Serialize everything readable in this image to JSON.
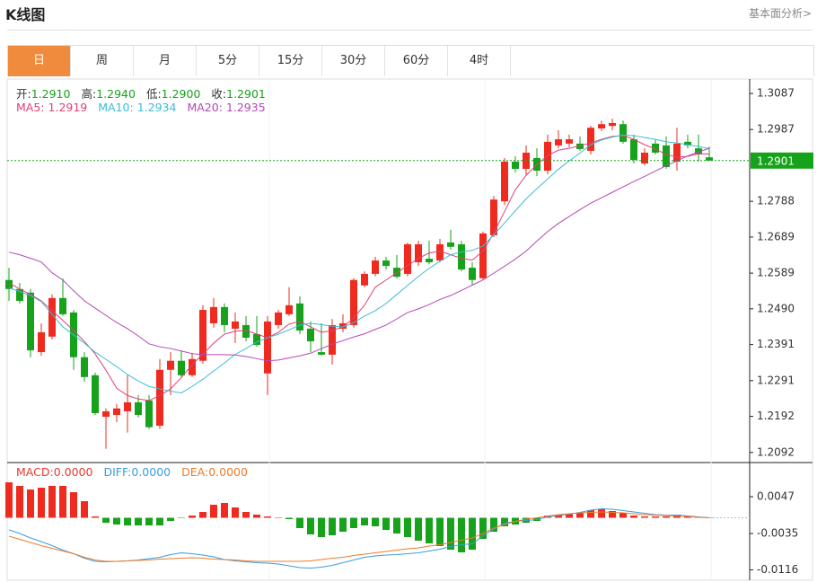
{
  "header": {
    "title": "K线图",
    "link": "基本面分析>"
  },
  "tabs": [
    "日",
    "周",
    "月",
    "5分",
    "15分",
    "30分",
    "60分",
    "4时"
  ],
  "chart_data": [
    {
      "type": "candlestick",
      "ohlc_info": [
        {
          "name": "开:",
          "value": "1.2910"
        },
        {
          "name": "高:",
          "value": "1.2940"
        },
        {
          "name": "低:",
          "value": "1.2900"
        },
        {
          "name": "收:",
          "value": "1.2901"
        }
      ],
      "up_color": "#ee2b1e",
      "down_color": "#16a21a",
      "categories": [
        null,
        null,
        null,
        null,
        null,
        null,
        null,
        null,
        null,
        null,
        null,
        null,
        null,
        null,
        null,
        null,
        null,
        null,
        null,
        null,
        null,
        null,
        null,
        null,
        null,
        null,
        null,
        null,
        null,
        null,
        null,
        null,
        null,
        null,
        null,
        null,
        null,
        null,
        null,
        null,
        null,
        null,
        null,
        null,
        null,
        null,
        null,
        null,
        null,
        null,
        null,
        null,
        null,
        null,
        null,
        null,
        null,
        null,
        null,
        null,
        null,
        null,
        null,
        null,
        null,
        null
      ],
      "open": [
        1.257,
        1.2545,
        1.2535,
        1.237,
        1.2413,
        1.252,
        1.248,
        1.2356,
        1.2306,
        1.2191,
        1.2196,
        1.2206,
        1.2231,
        1.2236,
        1.2166,
        1.2321,
        1.2346,
        1.2306,
        1.2346,
        1.245,
        1.2495,
        1.2435,
        1.2445,
        1.242,
        1.2311,
        1.2445,
        1.2475,
        1.2505,
        1.2435,
        1.237,
        1.2363,
        1.2435,
        1.2445,
        1.2555,
        1.2587,
        1.2624,
        1.2604,
        1.2587,
        1.2619,
        1.2629,
        1.2624,
        1.2674,
        1.2669,
        1.2604,
        1.2575,
        1.2694,
        1.2788,
        1.2898,
        1.2878,
        1.2908,
        1.2873,
        1.2943,
        1.2948,
        1.2948,
        1.2928,
        1.299,
        1.2997,
        1.3002,
        1.296,
        1.2893,
        1.2948,
        1.2943,
        1.2898,
        1.2953,
        1.2935,
        1.291
      ],
      "high": [
        1.2604,
        1.2562,
        1.2545,
        1.245,
        1.253,
        1.2574,
        1.2487,
        1.237,
        1.2313,
        1.2214,
        1.2226,
        1.2306,
        1.2251,
        1.2251,
        1.2351,
        1.237,
        1.2375,
        1.2368,
        1.25,
        1.252,
        1.2505,
        1.248,
        1.247,
        1.247,
        1.247,
        1.2487,
        1.255,
        1.2525,
        1.2455,
        1.245,
        1.2462,
        1.2475,
        1.2575,
        1.2594,
        1.2634,
        1.2634,
        1.2639,
        1.2674,
        1.2679,
        1.2679,
        1.2684,
        1.2709,
        1.2679,
        1.2619,
        1.2704,
        1.2803,
        1.2908,
        1.2913,
        1.2943,
        1.2935,
        1.2973,
        1.2985,
        1.2973,
        1.2968,
        1.2997,
        1.3012,
        1.3017,
        1.3012,
        1.2973,
        1.2935,
        1.296,
        1.2968,
        1.2992,
        1.2973,
        1.2973,
        1.294
      ],
      "low": [
        1.2512,
        1.2505,
        1.2356,
        1.236,
        1.2405,
        1.247,
        1.2321,
        1.2288,
        1.2196,
        1.2102,
        1.2176,
        1.2147,
        1.2189,
        1.2157,
        1.2157,
        1.2251,
        1.2301,
        1.2301,
        1.2338,
        1.2438,
        1.2425,
        1.2395,
        1.24,
        1.2385,
        1.2251,
        1.2435,
        1.247,
        1.242,
        1.237,
        1.236,
        1.2336,
        1.2425,
        1.2438,
        1.255,
        1.258,
        1.2599,
        1.2574,
        1.258,
        1.2609,
        1.2614,
        1.2619,
        1.2654,
        1.2594,
        1.2555,
        1.257,
        1.2689,
        1.2778,
        1.2868,
        1.2861,
        1.2858,
        1.2863,
        1.2935,
        1.2938,
        1.2928,
        1.2918,
        1.2983,
        1.2985,
        1.2948,
        1.2893,
        1.2888,
        1.2918,
        1.2878,
        1.2873,
        1.2935,
        1.2898,
        1.29
      ],
      "close": [
        1.2545,
        1.2512,
        1.2375,
        1.2425,
        1.252,
        1.2475,
        1.2356,
        1.2301,
        1.2201,
        1.2206,
        1.2214,
        1.2231,
        1.2196,
        1.2162,
        1.2321,
        1.2346,
        1.2306,
        1.2351,
        1.2487,
        1.2495,
        1.2445,
        1.2455,
        1.241,
        1.239,
        1.2455,
        1.248,
        1.25,
        1.243,
        1.24,
        1.2363,
        1.2445,
        1.245,
        1.257,
        1.2587,
        1.2624,
        1.2609,
        1.2579,
        1.2669,
        1.2669,
        1.2619,
        1.2669,
        1.2662,
        1.2599,
        1.257,
        1.2699,
        1.2793,
        1.2898,
        1.2878,
        1.2923,
        1.2873,
        1.2953,
        1.296,
        1.296,
        1.2933,
        1.2992,
        1.3002,
        1.3005,
        1.2953,
        1.2903,
        1.2923,
        1.2923,
        1.2883,
        1.2948,
        1.2943,
        1.2918,
        1.2901
      ],
      "ma": [
        {
          "name": "MA5:",
          "value_label": "1.2919",
          "color": "#e0407a",
          "values": [
            1.2562,
            1.2545,
            1.253,
            1.2512,
            1.2485,
            1.2458,
            1.243,
            1.24,
            1.2365,
            1.232,
            1.227,
            1.225,
            1.224,
            1.2236,
            1.225,
            1.2268,
            1.23,
            1.2335,
            1.2365,
            1.2395,
            1.242,
            1.2428,
            1.243,
            1.242,
            1.241,
            1.2425,
            1.2448,
            1.2455,
            1.244,
            1.2425,
            1.243,
            1.244,
            1.2465,
            1.25,
            1.255,
            1.257,
            1.259,
            1.261,
            1.263,
            1.2645,
            1.265,
            1.264,
            1.263,
            1.2625,
            1.265,
            1.27,
            1.276,
            1.282,
            1.286,
            1.289,
            1.2915,
            1.293,
            1.2935,
            1.2942,
            1.295,
            1.296,
            1.2968,
            1.297,
            1.296,
            1.2945,
            1.2933,
            1.2918,
            1.291,
            1.2913,
            1.292,
            1.2919
          ]
        },
        {
          "name": "MA10:",
          "value_label": "1.2934",
          "color": "#3cbcd8",
          "values": [
            1.2548,
            1.2538,
            1.2527,
            1.251,
            1.2475,
            1.244,
            1.2418,
            1.2395,
            1.237,
            1.235,
            1.233,
            1.2308,
            1.229,
            1.2275,
            1.2268,
            1.2262,
            1.2257,
            1.2275,
            1.2295,
            1.2318,
            1.234,
            1.2364,
            1.238,
            1.2398,
            1.241,
            1.242,
            1.2432,
            1.2445,
            1.245,
            1.2446,
            1.2442,
            1.244,
            1.2452,
            1.247,
            1.2485,
            1.2505,
            1.253,
            1.2555,
            1.258,
            1.2602,
            1.2622,
            1.264,
            1.2648,
            1.2652,
            1.2664,
            1.2695,
            1.2728,
            1.2762,
            1.2795,
            1.2823,
            1.285,
            1.2877,
            1.29,
            1.2922,
            1.2945,
            1.2958,
            1.2966,
            1.2972,
            1.297,
            1.2965,
            1.296,
            1.2953,
            1.295,
            1.2945,
            1.294,
            1.2934
          ]
        },
        {
          "name": "MA20:",
          "value_label": "1.2935",
          "color": "#b546b8",
          "values": [
            1.2647,
            1.264,
            1.263,
            1.262,
            1.259,
            1.257,
            1.254,
            1.2512,
            1.2492,
            1.2472,
            1.2452,
            1.2435,
            1.2415,
            1.2393,
            1.2385,
            1.238,
            1.2373,
            1.2366,
            1.2363,
            1.2363,
            1.2363,
            1.2362,
            1.2358,
            1.2352,
            1.2346,
            1.2348,
            1.2354,
            1.236,
            1.2367,
            1.238,
            1.2392,
            1.2402,
            1.2412,
            1.2421,
            1.2433,
            1.2445,
            1.2462,
            1.248,
            1.249,
            1.2502,
            1.2516,
            1.2527,
            1.2541,
            1.2556,
            1.257,
            1.2589,
            1.2608,
            1.2628,
            1.265,
            1.2678,
            1.2704,
            1.2727,
            1.2746,
            1.2765,
            1.2783,
            1.2798,
            1.2813,
            1.2828,
            1.2843,
            1.2857,
            1.2872,
            1.2887,
            1.29,
            1.2914,
            1.2925,
            1.2935
          ]
        }
      ],
      "last_price": 1.2901,
      "ylim": [
        1.2064,
        1.3127
      ],
      "yticks": [
        1.3087,
        1.2987,
        1.2788,
        1.2689,
        1.2589,
        {
          "value": 1.249,
          "label": "1.2490"
        },
        1.2391,
        1.2291,
        1.2192,
        1.2092
      ]
    },
    {
      "type": "macd",
      "info": [
        {
          "name": "MACD:",
          "value": "0.0000",
          "color": "#e8392f"
        },
        {
          "name": "DIFF:",
          "value": "0.0000",
          "color": "#3a9de0"
        },
        {
          "name": "DEA:",
          "value": "0.0000",
          "color": "#ef7b2b"
        }
      ],
      "up_color": "#ee2b1e",
      "down_color": "#16a21a",
      "macd": [
        0.0079,
        0.0071,
        0.0063,
        0.0067,
        0.0071,
        0.0071,
        0.0057,
        0.0037,
        0.0003,
        -0.0011,
        -0.0015,
        -0.0017,
        -0.0017,
        -0.0017,
        -0.0017,
        -0.0007,
        -0.0001,
        0.0005,
        0.0013,
        0.0029,
        0.0033,
        0.0023,
        0.0013,
        0.0007,
        0.0003,
        0.0001,
        -0.0003,
        -0.0023,
        -0.0037,
        -0.0043,
        -0.0039,
        -0.0031,
        -0.0023,
        -0.0017,
        -0.0019,
        -0.0027,
        -0.0035,
        -0.0043,
        -0.0051,
        -0.0057,
        -0.0063,
        -0.0071,
        -0.0077,
        -0.0071,
        -0.0047,
        -0.0031,
        -0.0019,
        -0.0015,
        -0.0011,
        -0.0007,
        0.0005,
        0.0007,
        0.0009,
        0.0011,
        0.0017,
        0.0019,
        0.0015,
        0.0011,
        0.0005,
        0.0003,
        0.0003,
        0.0003,
        0.0007,
        0.0003,
        0.0001,
        -0.0001
      ],
      "series": [
        {
          "name": "DIFF",
          "color": "#3a9de0",
          "values": [
            -0.0027,
            -0.0035,
            -0.0045,
            -0.0053,
            -0.0062,
            -0.0072,
            -0.008,
            -0.009,
            -0.0097,
            -0.0098,
            -0.0097,
            -0.0096,
            -0.0094,
            -0.0091,
            -0.0088,
            -0.0082,
            -0.0078,
            -0.008,
            -0.0083,
            -0.0087,
            -0.0093,
            -0.0096,
            -0.0098,
            -0.01,
            -0.0101,
            -0.0103,
            -0.0107,
            -0.0111,
            -0.0112,
            -0.011,
            -0.0106,
            -0.01,
            -0.0094,
            -0.0088,
            -0.0085,
            -0.0083,
            -0.0082,
            -0.008,
            -0.0078,
            -0.0074,
            -0.007,
            -0.0064,
            -0.006,
            -0.0058,
            -0.004,
            -0.0025,
            -0.0012,
            -0.0008,
            -0.0006,
            -0.0004,
            0.0002,
            0.0005,
            0.0008,
            0.0012,
            0.0017,
            0.002,
            0.0019,
            0.0016,
            0.0013,
            0.001,
            0.0007,
            0.0006,
            0.0006,
            0.0004,
            0.0002,
            0.0
          ]
        },
        {
          "name": "DEA",
          "color": "#ef7b2b",
          "values": [
            -0.0041,
            -0.0048,
            -0.0055,
            -0.0062,
            -0.0068,
            -0.0074,
            -0.008,
            -0.0088,
            -0.0094,
            -0.0097,
            -0.0097,
            -0.0096,
            -0.0095,
            -0.0094,
            -0.0092,
            -0.0091,
            -0.009,
            -0.0089,
            -0.009,
            -0.0092,
            -0.0093,
            -0.0094,
            -0.0096,
            -0.0097,
            -0.0097,
            -0.0097,
            -0.0097,
            -0.0097,
            -0.0096,
            -0.0093,
            -0.009,
            -0.0088,
            -0.0084,
            -0.0081,
            -0.0078,
            -0.0075,
            -0.0072,
            -0.0069,
            -0.0067,
            -0.0063,
            -0.006,
            -0.0055,
            -0.005,
            -0.0045,
            -0.0035,
            -0.0023,
            -0.0015,
            -0.0008,
            -0.0003,
            0.0,
            0.0004,
            0.0007,
            0.0009,
            0.0011,
            0.0012,
            0.0013,
            0.0012,
            0.0011,
            0.0009,
            0.0007,
            0.0006,
            0.0005,
            0.0004,
            0.0003,
            0.0001,
            0.0
          ]
        }
      ],
      "ylim": [
        -0.0143,
        0.0123
      ],
      "yticks": [
        0.0047,
        -0.0035,
        -0.0116
      ]
    }
  ]
}
